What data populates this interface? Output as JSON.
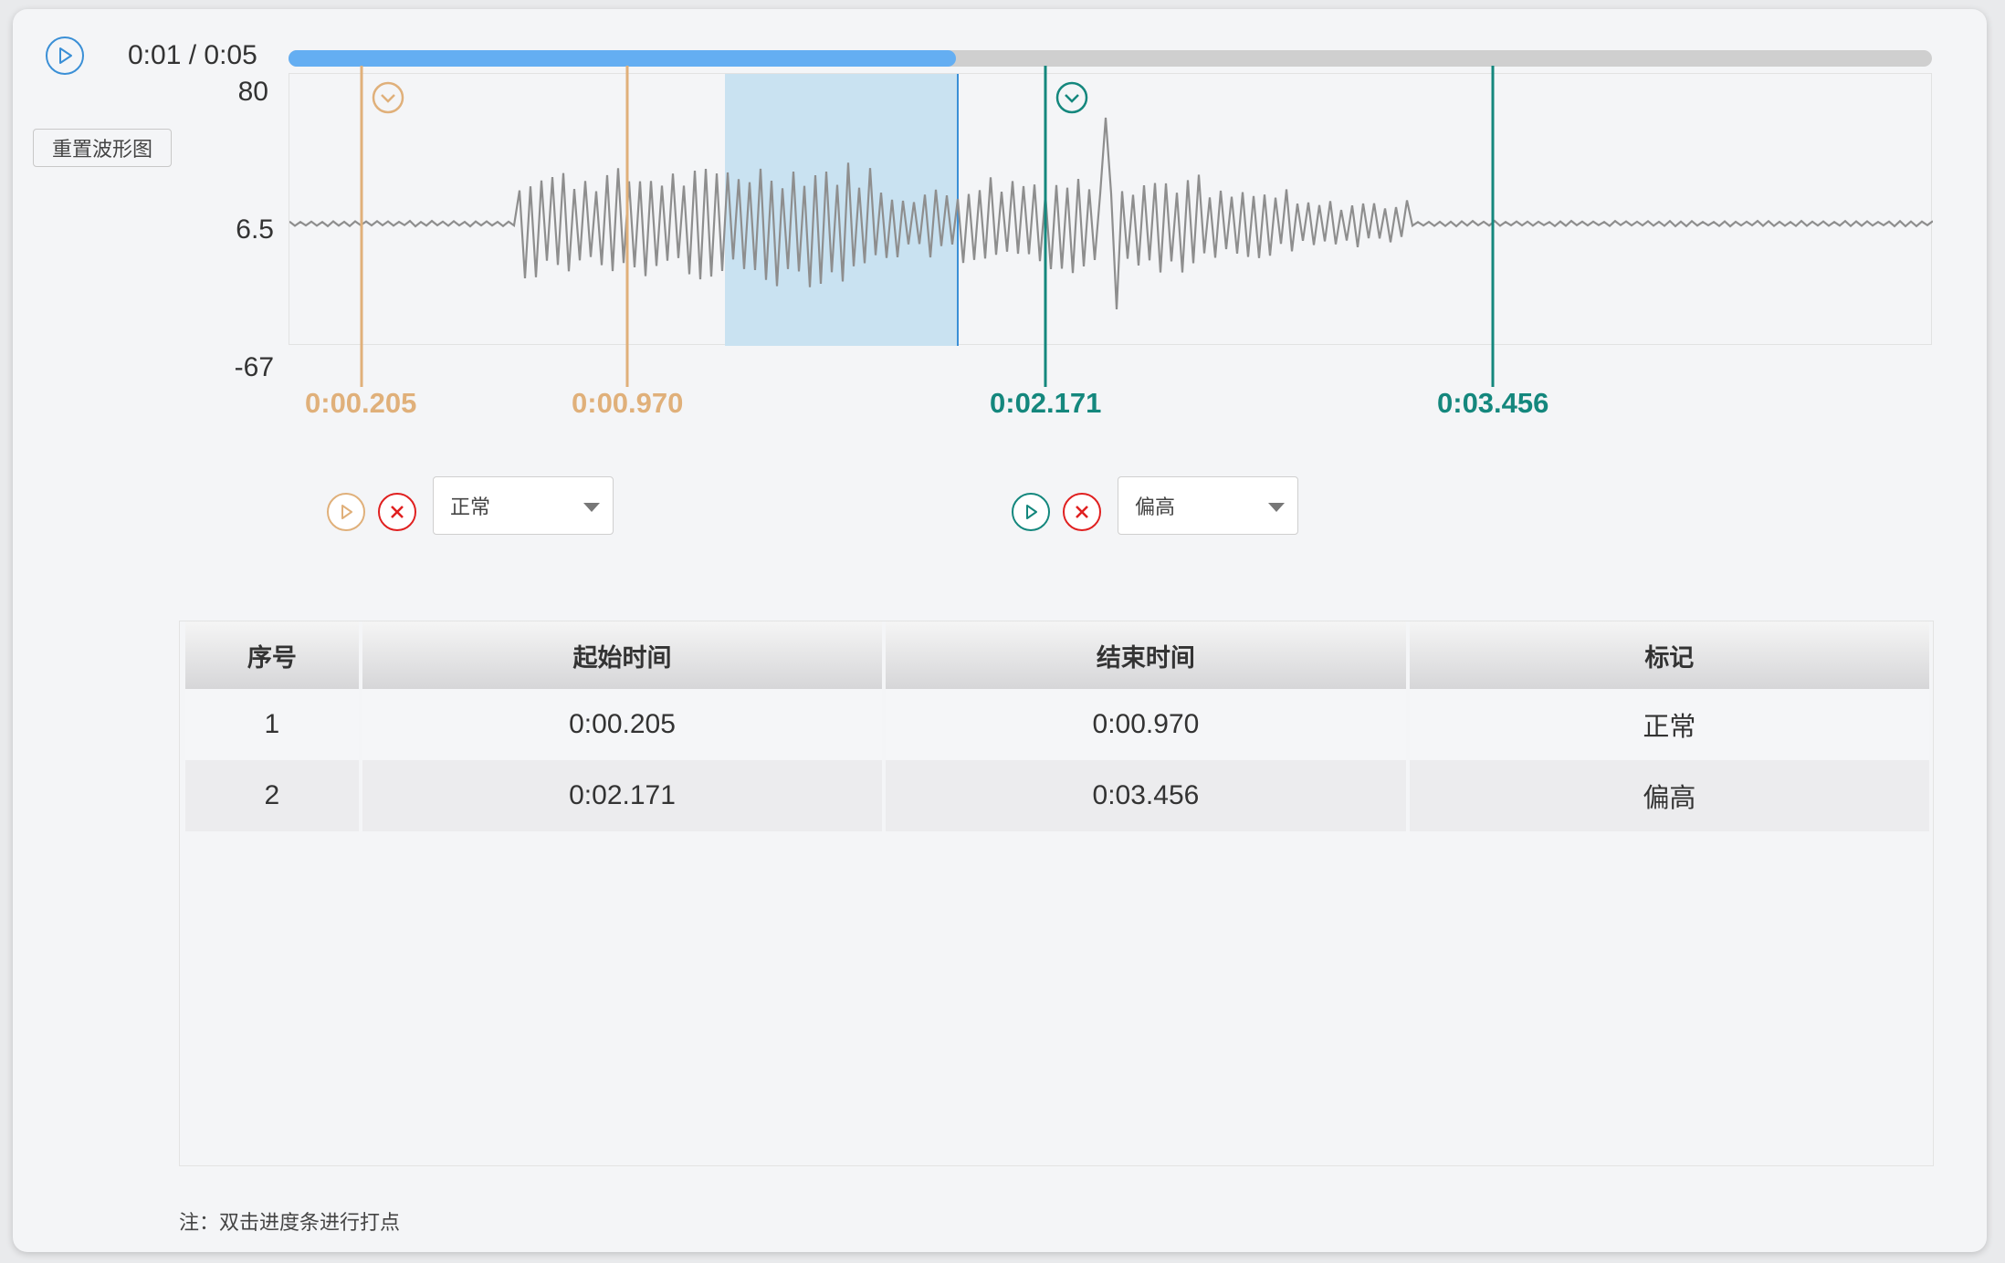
{
  "player": {
    "play_icon": "play-icon",
    "time_display": "0:01 / 0:05",
    "progress": 0.406,
    "reset_label": "重置波形图"
  },
  "waveform": {
    "y_ticks": [
      "80",
      "6.5",
      "-67"
    ],
    "selection_fill": "#c9e2f1"
  },
  "markers": [
    {
      "start": "0:00.205",
      "end": "0:00.970",
      "color": "#e0b07a"
    },
    {
      "start": "0:02.171",
      "end": "0:03.456",
      "color": "#14877d"
    }
  ],
  "segments": [
    {
      "label": "正常",
      "color": "#e0b07a"
    },
    {
      "label": "偏高",
      "color": "#14877d"
    }
  ],
  "table": {
    "headers": [
      "序号",
      "起始时间",
      "结束时间",
      "标记"
    ],
    "rows": [
      [
        "1",
        "0:00.205",
        "0:00.970",
        "正常"
      ],
      [
        "2",
        "0:02.171",
        "0:03.456",
        "偏高"
      ]
    ]
  },
  "note": "注：双击进度条进行打点",
  "colors": {
    "accent_blue": "#3a8fd6",
    "progress_fill": "#64aef2",
    "delete_red": "#e02020"
  }
}
